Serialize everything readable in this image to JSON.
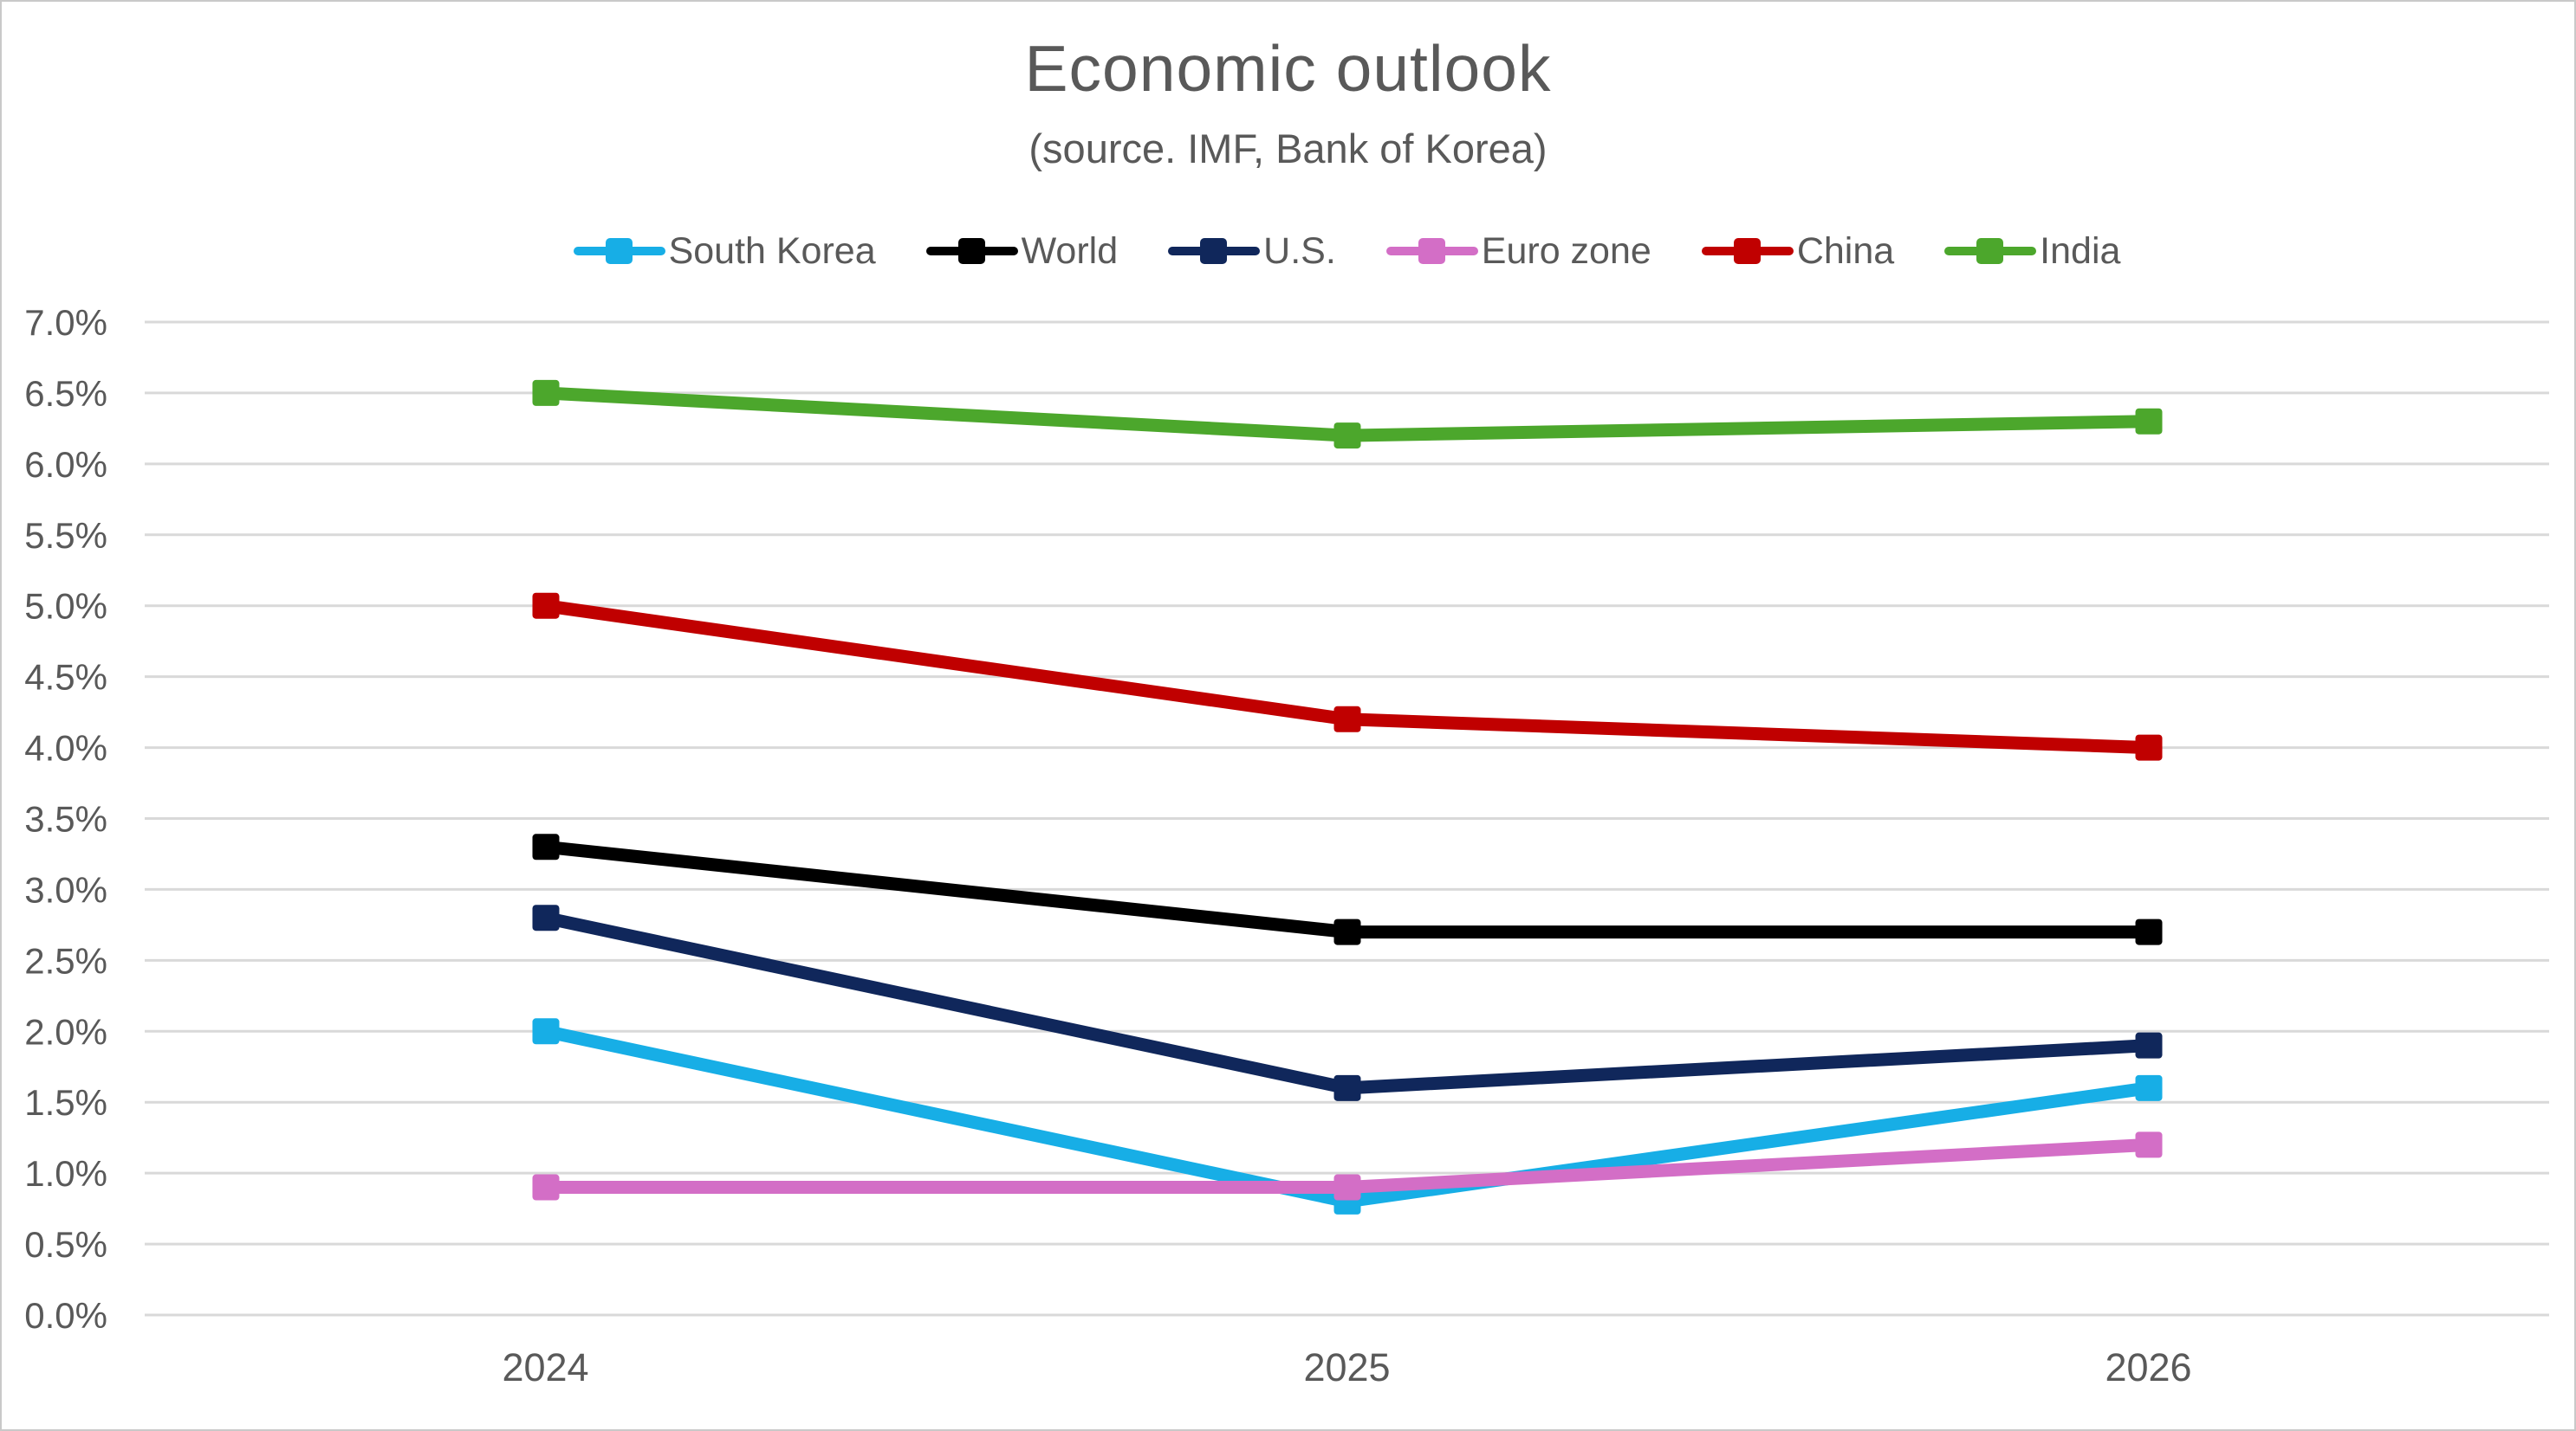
{
  "title": "Economic outlook",
  "subtitle": "(source. IMF, Bank of Korea)",
  "colors": {
    "text": "#595959",
    "gridline": "#d9d9d9",
    "background": "#ffffff",
    "border": "#c9c9c9"
  },
  "chart_data": {
    "type": "line",
    "title": "Economic outlook",
    "subtitle": "(source. IMF, Bank of Korea)",
    "categories": [
      "2024",
      "2025",
      "2026"
    ],
    "series": [
      {
        "name": "South Korea",
        "color": "#17aee6",
        "values": [
          2.0,
          0.8,
          1.6
        ]
      },
      {
        "name": "World",
        "color": "#000000",
        "values": [
          3.3,
          2.7,
          2.7
        ]
      },
      {
        "name": "U.S.",
        "color": "#10275b",
        "values": [
          2.8,
          1.6,
          1.9
        ]
      },
      {
        "name": "Euro zone",
        "color": "#d36ec6",
        "values": [
          0.9,
          0.9,
          1.2
        ]
      },
      {
        "name": "China",
        "color": "#c00000",
        "values": [
          5.0,
          4.2,
          4.0
        ]
      },
      {
        "name": "India",
        "color": "#4ca72c",
        "values": [
          6.5,
          6.2,
          6.3
        ]
      }
    ],
    "ylim": [
      0,
      7
    ],
    "ytick_step": 0.5,
    "ytick_labels": [
      "7.0%",
      "6.5%",
      "6.0%",
      "5.5%",
      "5.0%",
      "4.5%",
      "4.0%",
      "3.5%",
      "3.0%",
      "2.5%",
      "2.0%",
      "1.5%",
      "1.0%",
      "0.5%",
      "0.0%"
    ],
    "xlabel": "",
    "ylabel": "",
    "grid": true,
    "legend_position": "top",
    "marker": "square"
  }
}
